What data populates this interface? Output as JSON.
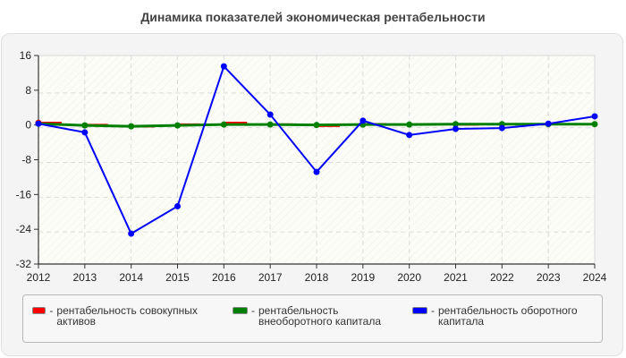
{
  "title": "Динамика показателей экономическая рентабельности",
  "chart_data": {
    "type": "line",
    "title": "Динамика показателей экономическая рентабельности",
    "xlabel": "",
    "ylabel": "",
    "x": [
      2012,
      2013,
      2014,
      2015,
      2016,
      2017,
      2018,
      2019,
      2020,
      2021,
      2022,
      2023,
      2024
    ],
    "y_ticks": [
      16,
      8,
      0,
      -8,
      -16,
      -24,
      -32
    ],
    "ylim": [
      -32,
      16
    ],
    "grid": true,
    "legend_position": "bottom",
    "series": [
      {
        "name": "рентабельность совокупных активов",
        "color": "#ff0000",
        "values": [
          0.5,
          0.0,
          -0.3,
          0.1,
          0.5,
          0.1,
          -0.2,
          0.2,
          0.1,
          0.1,
          0.2,
          0.2,
          0.2
        ]
      },
      {
        "name": "рентабельность внеоборотного капитала",
        "color": "#008000",
        "values": [
          0.3,
          -0.1,
          -0.3,
          -0.1,
          0.1,
          0.1,
          0.0,
          0.1,
          0.1,
          0.2,
          0.2,
          0.2,
          0.2
        ]
      },
      {
        "name": "рентабельность оборотного капитала",
        "color": "#0000ff",
        "values": [
          0.3,
          -1.7,
          -25.0,
          -18.7,
          13.5,
          2.4,
          -10.8,
          1.0,
          -2.3,
          -0.9,
          -0.7,
          0.3,
          2.0
        ]
      }
    ]
  },
  "legend": [
    {
      "label": "рентабельность совокупных активов",
      "color": "#ff0000"
    },
    {
      "label": "рентабельность внеоборотного капитала",
      "color": "#008000"
    },
    {
      "label": "рентабельность оборотного капитала",
      "color": "#0000ff"
    }
  ],
  "legend_separator": "-"
}
